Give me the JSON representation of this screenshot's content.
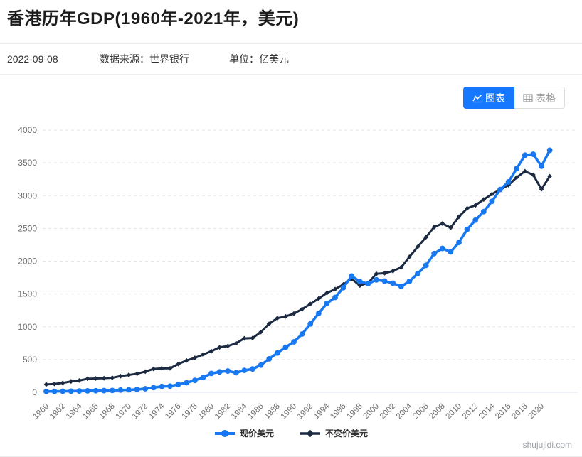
{
  "page": {
    "title": "香港历年GDP(1960年-2021年，美元)",
    "date": "2022-09-08",
    "source_label": "数据来源：世界银行",
    "unit_label": "单位：亿美元",
    "watermark": "shujujidi.com"
  },
  "toolbar": {
    "chart_tab": "图表",
    "table_tab": "表格",
    "active_color": "#1677ff",
    "inactive_text_color": "#9b9b9b"
  },
  "chart_data": {
    "type": "line",
    "x": [
      1960,
      1961,
      1962,
      1963,
      1964,
      1965,
      1966,
      1967,
      1968,
      1969,
      1970,
      1971,
      1972,
      1973,
      1974,
      1975,
      1976,
      1977,
      1978,
      1979,
      1980,
      1981,
      1982,
      1983,
      1984,
      1985,
      1986,
      1987,
      1988,
      1989,
      1990,
      1991,
      1992,
      1993,
      1994,
      1995,
      1996,
      1997,
      1998,
      1999,
      2000,
      2001,
      2002,
      2003,
      2004,
      2005,
      2006,
      2007,
      2008,
      2009,
      2010,
      2011,
      2012,
      2013,
      2014,
      2015,
      2016,
      2017,
      2018,
      2019,
      2020,
      2021
    ],
    "series": [
      {
        "name": "现价美元",
        "color": "#1778f2",
        "marker": "circle",
        "values": [
          13.2,
          14.0,
          15.7,
          17.7,
          20.0,
          22.9,
          24.6,
          26.4,
          28.7,
          34.3,
          38.0,
          44.5,
          54.0,
          71.8,
          89.4,
          94.3,
          121.0,
          146.1,
          182.2,
          225.3,
          288.6,
          311.1,
          324.5,
          297.8,
          334.9,
          355.7,
          414.3,
          509.9,
          599.5,
          686.5,
          769.3,
          888.7,
          1043.5,
          1202.5,
          1356.7,
          1447.0,
          1596.9,
          1773.5,
          1687.9,
          1657.7,
          1714.7,
          1695.8,
          1663.4,
          1614.8,
          1692.2,
          1810.0,
          1936.4,
          2116.0,
          2194.4,
          2141.6,
          2286.4,
          2485.1,
          2626.3,
          2756.0,
          2912.9,
          3093.8,
          3209.1,
          3412.6,
          3617.0,
          3631.7,
          3448.1,
          3691.7
        ]
      },
      {
        "name": "不变价美元",
        "color": "#1c2b42",
        "marker": "diamond",
        "values": [
          120,
          127,
          144,
          166,
          180,
          207,
          211,
          215,
          222,
          247,
          265,
          284,
          316,
          357,
          365,
          366,
          431,
          485,
          526,
          576,
          627,
          686,
          706,
          748,
          823,
          828,
          919,
          1045,
          1131,
          1157,
          1201,
          1269,
          1347,
          1430,
          1515,
          1574,
          1645,
          1730,
          1629,
          1668,
          1807,
          1817,
          1850,
          1906,
          2066,
          2218,
          2365,
          2521,
          2574,
          2512,
          2678,
          2806,
          2853,
          2942,
          3023,
          3094,
          3160,
          3278,
          3371,
          3317,
          3098,
          3295
        ]
      }
    ],
    "ylim": [
      0,
      4000
    ],
    "ytick_step": 500,
    "xtick_every": 2,
    "grid": "horizontal-dashed",
    "grid_color": "#e6e6e6",
    "axis_line_color": "#d8e1f0",
    "tick_label_color": "#6e6e6e",
    "legend_position": "bottom"
  }
}
